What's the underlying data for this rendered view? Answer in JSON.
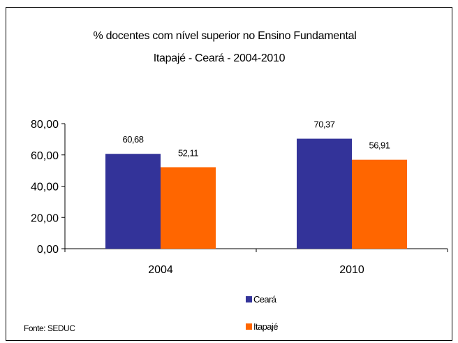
{
  "chart_data": {
    "type": "bar",
    "title": "% docentes com nível  superior no Ensino Fundamental",
    "subtitle": "Itapajé  -  Ceará - 2004-2010",
    "categories": [
      "2004",
      "2010"
    ],
    "series": [
      {
        "name": "Ceará",
        "values": [
          60.68,
          70.37
        ],
        "labels": [
          "60,68",
          "70,37"
        ],
        "color": "#333399"
      },
      {
        "name": "Itapajé",
        "values": [
          52.11,
          56.91
        ],
        "labels": [
          "52,11",
          "56,91"
        ],
        "color": "#FF6600"
      }
    ],
    "ylim": [
      0,
      80
    ],
    "yticks": [
      0,
      20,
      40,
      60,
      80
    ],
    "ytick_labels": [
      "0,00",
      "20,00",
      "40,00",
      "60,00",
      "80,00"
    ],
    "grid": false,
    "legend": "bottom-center"
  },
  "source": "Fonte: SEDUC"
}
